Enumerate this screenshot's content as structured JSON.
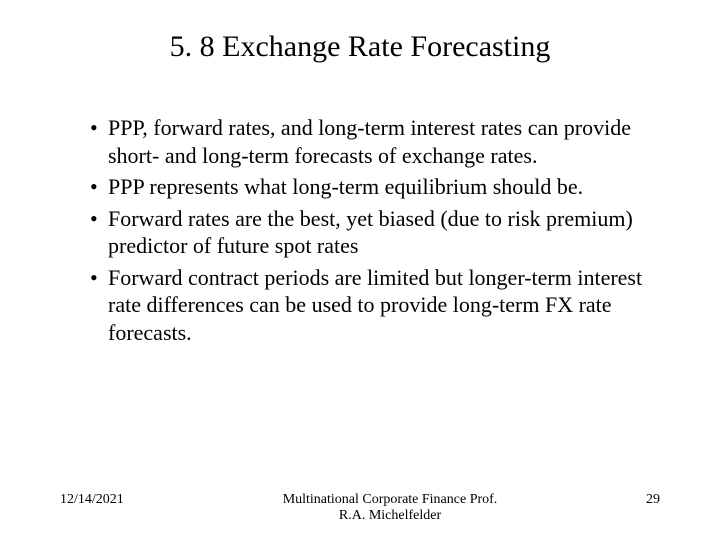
{
  "title": "5. 8 Exchange Rate Forecasting",
  "bullets": [
    "PPP, forward rates, and long-term interest rates can provide short- and long-term forecasts of exchange rates.",
    "PPP represents what long-term equilibrium should be.",
    "Forward rates are the best, yet biased (due to risk premium) predictor of future spot rates",
    "Forward contract periods are limited but longer-term interest rate differences can be used to provide long-term FX rate forecasts."
  ],
  "footer": {
    "date": "12/14/2021",
    "center_line1": "Multinational Corporate Finance Prof.",
    "center_line2": "R.A. Michelfelder",
    "page": "29"
  },
  "style": {
    "background_color": "#ffffff",
    "text_color": "#000000",
    "title_fontsize": 30,
    "body_fontsize": 22,
    "footer_fontsize": 14,
    "font_family": "Times New Roman"
  }
}
